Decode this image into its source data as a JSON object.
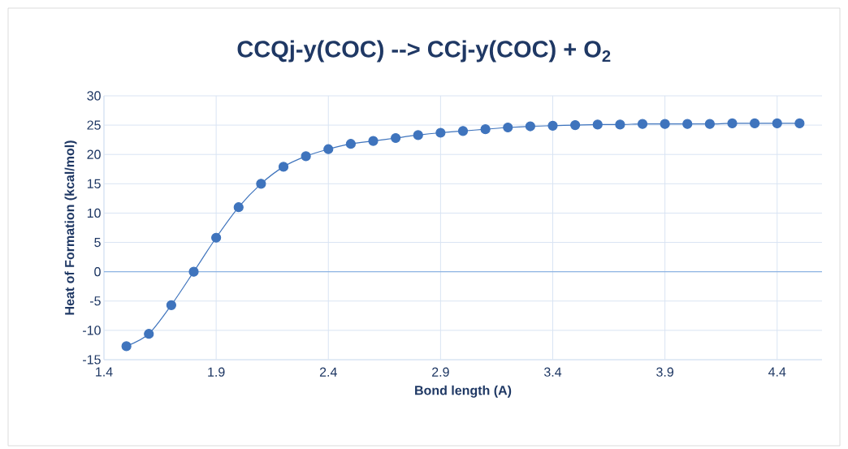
{
  "chart_data": {
    "type": "line",
    "title": "CCQj-y(COC) --> CCj-y(COC) + O$_{2}$",
    "xlabel": "Bond length (A)",
    "ylabel": "Heat of Formation (kcal/mol)",
    "x": [
      1.5,
      1.6,
      1.7,
      1.8,
      1.9,
      2.0,
      2.1,
      2.2,
      2.3,
      2.4,
      2.5,
      2.6,
      2.7,
      2.8,
      2.9,
      3.0,
      3.1,
      3.2,
      3.3,
      3.4,
      3.5,
      3.6,
      3.7,
      3.8,
      3.9,
      4.0,
      4.1,
      4.2,
      4.3,
      4.4,
      4.5
    ],
    "series": [
      {
        "color": "#3f74bd",
        "values": [
          -12.7,
          -10.6,
          -5.7,
          0.0,
          5.8,
          11.0,
          15.0,
          17.9,
          19.7,
          20.9,
          21.8,
          22.3,
          22.8,
          23.3,
          23.7,
          24.0,
          24.3,
          24.6,
          24.8,
          24.9,
          25.0,
          25.1,
          25.1,
          25.2,
          25.2,
          25.2,
          25.2,
          25.3,
          25.3,
          25.3,
          25.3
        ]
      }
    ],
    "xlim": [
      1.4,
      4.6
    ],
    "xticks": [
      1.4,
      1.9,
      2.4,
      2.9,
      3.4,
      3.9,
      4.4
    ],
    "ylim": [
      -15,
      30
    ],
    "yticks": [
      -15,
      -10,
      -5,
      0,
      5,
      10,
      15,
      20,
      25,
      30
    ],
    "ref_lines": [
      {
        "axis": "y",
        "value": 0,
        "color": "#8eb4e3"
      }
    ],
    "grid": true,
    "marker": "circle",
    "line_style": "solid",
    "legend": false
  }
}
